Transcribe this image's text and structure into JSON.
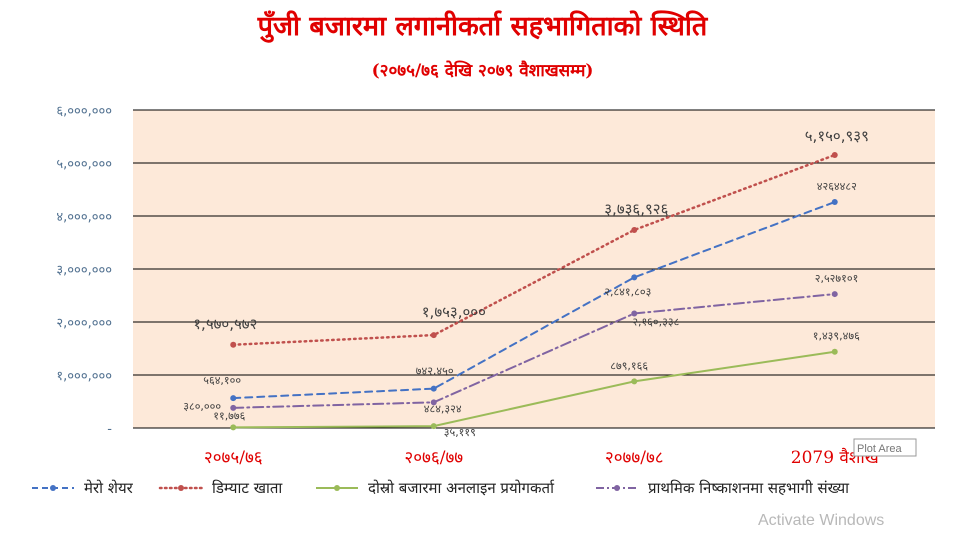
{
  "chart_data": {
    "type": "line",
    "title": "पुँजी बजारमा लगानीकर्ता सहभागिताको स्थिति",
    "subtitle": "(२०७५/७६ देखि २०७९ वैशाखसम्म)",
    "categories": [
      "२०७५/७६",
      "२०७६/७७",
      "२०७७/७८",
      "2079 वैशाख"
    ],
    "ylim": [
      0,
      6000000
    ],
    "yticks": [
      0,
      1000000,
      2000000,
      3000000,
      4000000,
      5000000,
      6000000
    ],
    "ytick_labels": [
      "-",
      "१,०००,०००",
      "२,०००,०००",
      "३,०००,०००",
      "४,०००,०००",
      "५,०००,०००",
      "६,०००,०००"
    ],
    "grid": true,
    "legend_position": "bottom",
    "plot_area_label": "Plot Area",
    "series": [
      {
        "name": "मेरो शेयर",
        "color": "#4472c4",
        "dash": "dashed",
        "values": [
          564100,
          742450,
          2841803,
          4264482
        ],
        "labels": [
          "५६४,१००",
          "७४२,४५०",
          "२,८४१,८०३",
          "४२६४४८२"
        ]
      },
      {
        "name": "डिम्याट खाता",
        "color": "#c0504d",
        "dash": "dotted",
        "values": [
          1570572,
          1753000,
          3736926,
          5150939
        ],
        "labels": [
          "१,५७०,५७२",
          "१,७५३,०००",
          "३,७३६,९२६",
          "५,१५०,९३९"
        ]
      },
      {
        "name": "दोस्रो बजारमा अनलाइन प्रयोगकर्ता",
        "color": "#9bbb59",
        "dash": "solid",
        "values": [
          11776,
          35119,
          879166,
          1439476
        ],
        "labels": [
          "११,७७६",
          "३५,११९",
          "८७९,१६६",
          "१,४३९,४७६"
        ]
      },
      {
        "name": "प्राथमिक निष्काशनमा सहभागी संख्या",
        "color": "#8064a2",
        "dash": "dashdot",
        "values": [
          380000,
          484324,
          2160338,
          2527101
        ],
        "labels": [
          "३८०,०००",
          "४८४,३२४",
          "२,१६०,३३८",
          "२,५२७१०१"
        ]
      }
    ]
  },
  "watermark": "Activate Windows"
}
